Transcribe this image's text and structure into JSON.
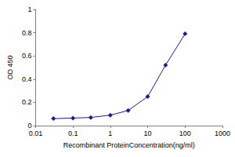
{
  "chart_data": {
    "type": "line",
    "xlabel": "Recombinant ProteinConcentration(ng/ml)",
    "ylabel": "OD 450",
    "x": [
      0.03,
      0.1,
      0.3,
      1,
      3,
      10,
      30,
      100
    ],
    "values": [
      0.06,
      0.065,
      0.07,
      0.09,
      0.13,
      0.25,
      0.52,
      0.79
    ],
    "color": "#1c1c8c",
    "marker": "diamond",
    "log": "x",
    "xlim": [
      0.01,
      1000
    ],
    "xticks": [
      0.01,
      0.1,
      1,
      10,
      100,
      1000
    ],
    "ylim": [
      0,
      1
    ],
    "yticks": [
      0,
      0.2,
      0.4,
      0.6,
      0.8,
      1
    ],
    "grid": false
  }
}
